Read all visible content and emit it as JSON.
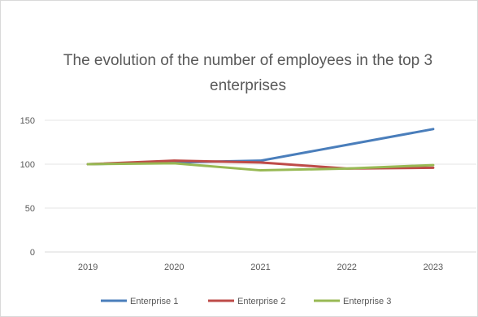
{
  "chart_data": {
    "type": "line",
    "title": "The evolution of the number of employees in the top 3 enterprises",
    "xlabel": "",
    "ylabel": "",
    "categories": [
      "2019",
      "2020",
      "2021",
      "2022",
      "2023"
    ],
    "ylim": [
      0,
      150
    ],
    "yticks": [
      0,
      50,
      100,
      150
    ],
    "grid": true,
    "legend_position": "bottom",
    "series": [
      {
        "name": "Enterprise 1",
        "color": "#4a7ebb",
        "values": [
          100,
          102,
          104,
          122,
          140
        ]
      },
      {
        "name": "Enterprise 2",
        "color": "#be4b48",
        "values": [
          100,
          104,
          102,
          95,
          96
        ]
      },
      {
        "name": "Enterprise 3",
        "color": "#98b954",
        "values": [
          100,
          101,
          93,
          95,
          99
        ]
      }
    ]
  }
}
